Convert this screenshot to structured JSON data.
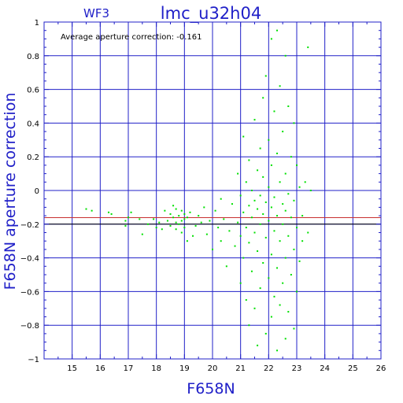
{
  "chart_data": {
    "type": "scatter",
    "title": "lmc_u32h04",
    "panel_label": "WF3",
    "annotation": "Average aperture correction: -0.161",
    "xlabel": "F658N",
    "ylabel": "F658N aperture correction",
    "xlim": [
      14,
      26
    ],
    "ylim": [
      -1,
      1
    ],
    "x_ticks": [
      15,
      16,
      17,
      18,
      19,
      20,
      21,
      22,
      23,
      24,
      25,
      26
    ],
    "y_ticks": [
      -1,
      -0.8,
      -0.6,
      -0.4,
      -0.2,
      0,
      0.2,
      0.4,
      0.6,
      0.8,
      1
    ],
    "y_tick_labels": [
      "−1",
      "−0.8",
      "−0.6",
      "−0.4",
      "−0.2",
      "0",
      "0.2",
      "0.4",
      "0.6",
      "0.8",
      "1"
    ],
    "grid": true,
    "average_line": -0.161,
    "reference_line": -0.2,
    "colors": {
      "frame": "#2020c8",
      "grid": "#2020c8",
      "points": "#00e000",
      "average_line": "#c83030",
      "reference_line": "#000000"
    },
    "points": [
      [
        15.5,
        -0.11
      ],
      [
        15.7,
        -0.12
      ],
      [
        16.3,
        -0.13
      ],
      [
        16.4,
        -0.14
      ],
      [
        16.9,
        -0.18
      ],
      [
        16.9,
        -0.21
      ],
      [
        17.0,
        -0.16
      ],
      [
        17.1,
        -0.13
      ],
      [
        17.4,
        -0.17
      ],
      [
        17.5,
        -0.26
      ],
      [
        17.7,
        -0.2
      ],
      [
        17.9,
        -0.17
      ],
      [
        18.0,
        -0.22
      ],
      [
        18.1,
        -0.19
      ],
      [
        18.2,
        -0.23
      ],
      [
        18.3,
        -0.12
      ],
      [
        18.4,
        -0.18
      ],
      [
        18.5,
        -0.14
      ],
      [
        18.5,
        -0.21
      ],
      [
        18.6,
        -0.09
      ],
      [
        18.6,
        -0.16
      ],
      [
        18.7,
        -0.11
      ],
      [
        18.7,
        -0.19
      ],
      [
        18.7,
        -0.23
      ],
      [
        18.8,
        -0.15
      ],
      [
        18.8,
        -0.2
      ],
      [
        18.9,
        -0.12
      ],
      [
        18.9,
        -0.18
      ],
      [
        18.9,
        -0.25
      ],
      [
        19.0,
        -0.14
      ],
      [
        19.0,
        -0.17
      ],
      [
        19.0,
        -0.22
      ],
      [
        19.1,
        -0.16
      ],
      [
        19.1,
        -0.3
      ],
      [
        19.2,
        -0.13
      ],
      [
        19.3,
        -0.27
      ],
      [
        19.4,
        -0.21
      ],
      [
        19.5,
        -0.15
      ],
      [
        19.6,
        -0.19
      ],
      [
        19.7,
        -0.1
      ],
      [
        19.8,
        -0.26
      ],
      [
        19.9,
        -0.18
      ],
      [
        20.0,
        -0.35
      ],
      [
        20.1,
        -0.12
      ],
      [
        20.2,
        -0.22
      ],
      [
        20.3,
        -0.05
      ],
      [
        20.3,
        -0.3
      ],
      [
        20.4,
        -0.17
      ],
      [
        20.5,
        -0.45
      ],
      [
        20.6,
        -0.24
      ],
      [
        20.7,
        -0.08
      ],
      [
        20.8,
        -0.33
      ],
      [
        20.9,
        0.1
      ],
      [
        20.9,
        -0.19
      ],
      [
        21.0,
        -0.03
      ],
      [
        21.0,
        -0.27
      ],
      [
        21.0,
        -0.55
      ],
      [
        21.1,
        0.32
      ],
      [
        21.1,
        -0.13
      ],
      [
        21.1,
        -0.4
      ],
      [
        21.2,
        0.05
      ],
      [
        21.2,
        -0.22
      ],
      [
        21.2,
        -0.65
      ],
      [
        21.3,
        0.18
      ],
      [
        21.3,
        -0.09
      ],
      [
        21.3,
        -0.31
      ],
      [
        21.3,
        -0.8
      ],
      [
        21.4,
        0.0
      ],
      [
        21.4,
        -0.16
      ],
      [
        21.4,
        -0.48
      ],
      [
        21.5,
        0.42
      ],
      [
        21.5,
        -0.06
      ],
      [
        21.5,
        -0.25
      ],
      [
        21.5,
        -0.7
      ],
      [
        21.6,
        0.12
      ],
      [
        21.6,
        -0.11
      ],
      [
        21.6,
        -0.36
      ],
      [
        21.6,
        -0.92
      ],
      [
        21.7,
        0.25
      ],
      [
        21.7,
        -0.03
      ],
      [
        21.7,
        -0.2
      ],
      [
        21.7,
        -0.58
      ],
      [
        21.8,
        0.55
      ],
      [
        21.8,
        0.08
      ],
      [
        21.8,
        -0.14
      ],
      [
        21.8,
        -0.43
      ],
      [
        21.9,
        0.68
      ],
      [
        21.9,
        -0.07
      ],
      [
        21.9,
        -0.28
      ],
      [
        21.9,
        -0.85
      ],
      [
        22.0,
        0.3
      ],
      [
        22.0,
        0.02
      ],
      [
        22.0,
        -0.18
      ],
      [
        22.0,
        -0.52
      ],
      [
        22.1,
        0.9
      ],
      [
        22.1,
        0.15
      ],
      [
        22.1,
        -0.1
      ],
      [
        22.1,
        -0.38
      ],
      [
        22.1,
        -0.75
      ],
      [
        22.2,
        0.47
      ],
      [
        22.2,
        -0.04
      ],
      [
        22.2,
        -0.24
      ],
      [
        22.2,
        -0.63
      ],
      [
        22.3,
        0.95
      ],
      [
        22.3,
        0.22
      ],
      [
        22.3,
        -0.15
      ],
      [
        22.3,
        -0.46
      ],
      [
        22.3,
        -0.95
      ],
      [
        22.4,
        0.62
      ],
      [
        22.4,
        0.05
      ],
      [
        22.4,
        -0.3
      ],
      [
        22.4,
        -0.68
      ],
      [
        22.5,
        0.35
      ],
      [
        22.5,
        -0.08
      ],
      [
        22.5,
        -0.2
      ],
      [
        22.5,
        -0.55
      ],
      [
        22.6,
        0.8
      ],
      [
        22.6,
        0.1
      ],
      [
        22.6,
        -0.12
      ],
      [
        22.6,
        -0.4
      ],
      [
        22.6,
        -0.88
      ],
      [
        22.7,
        0.5
      ],
      [
        22.7,
        -0.02
      ],
      [
        22.7,
        -0.27
      ],
      [
        22.7,
        -0.72
      ],
      [
        22.8,
        0.2
      ],
      [
        22.8,
        -0.16
      ],
      [
        22.8,
        -0.5
      ],
      [
        22.9,
        0.4
      ],
      [
        22.9,
        -0.06
      ],
      [
        22.9,
        -0.35
      ],
      [
        22.9,
        -0.82
      ],
      [
        23.0,
        0.15
      ],
      [
        23.0,
        -0.22
      ],
      [
        23.0,
        -0.6
      ],
      [
        23.1,
        0.02
      ],
      [
        23.1,
        -0.42
      ],
      [
        23.2,
        -0.15
      ],
      [
        23.2,
        -0.3
      ],
      [
        23.3,
        0.05
      ],
      [
        23.4,
        0.85
      ],
      [
        23.4,
        -0.25
      ],
      [
        23.5,
        0.0
      ]
    ]
  }
}
